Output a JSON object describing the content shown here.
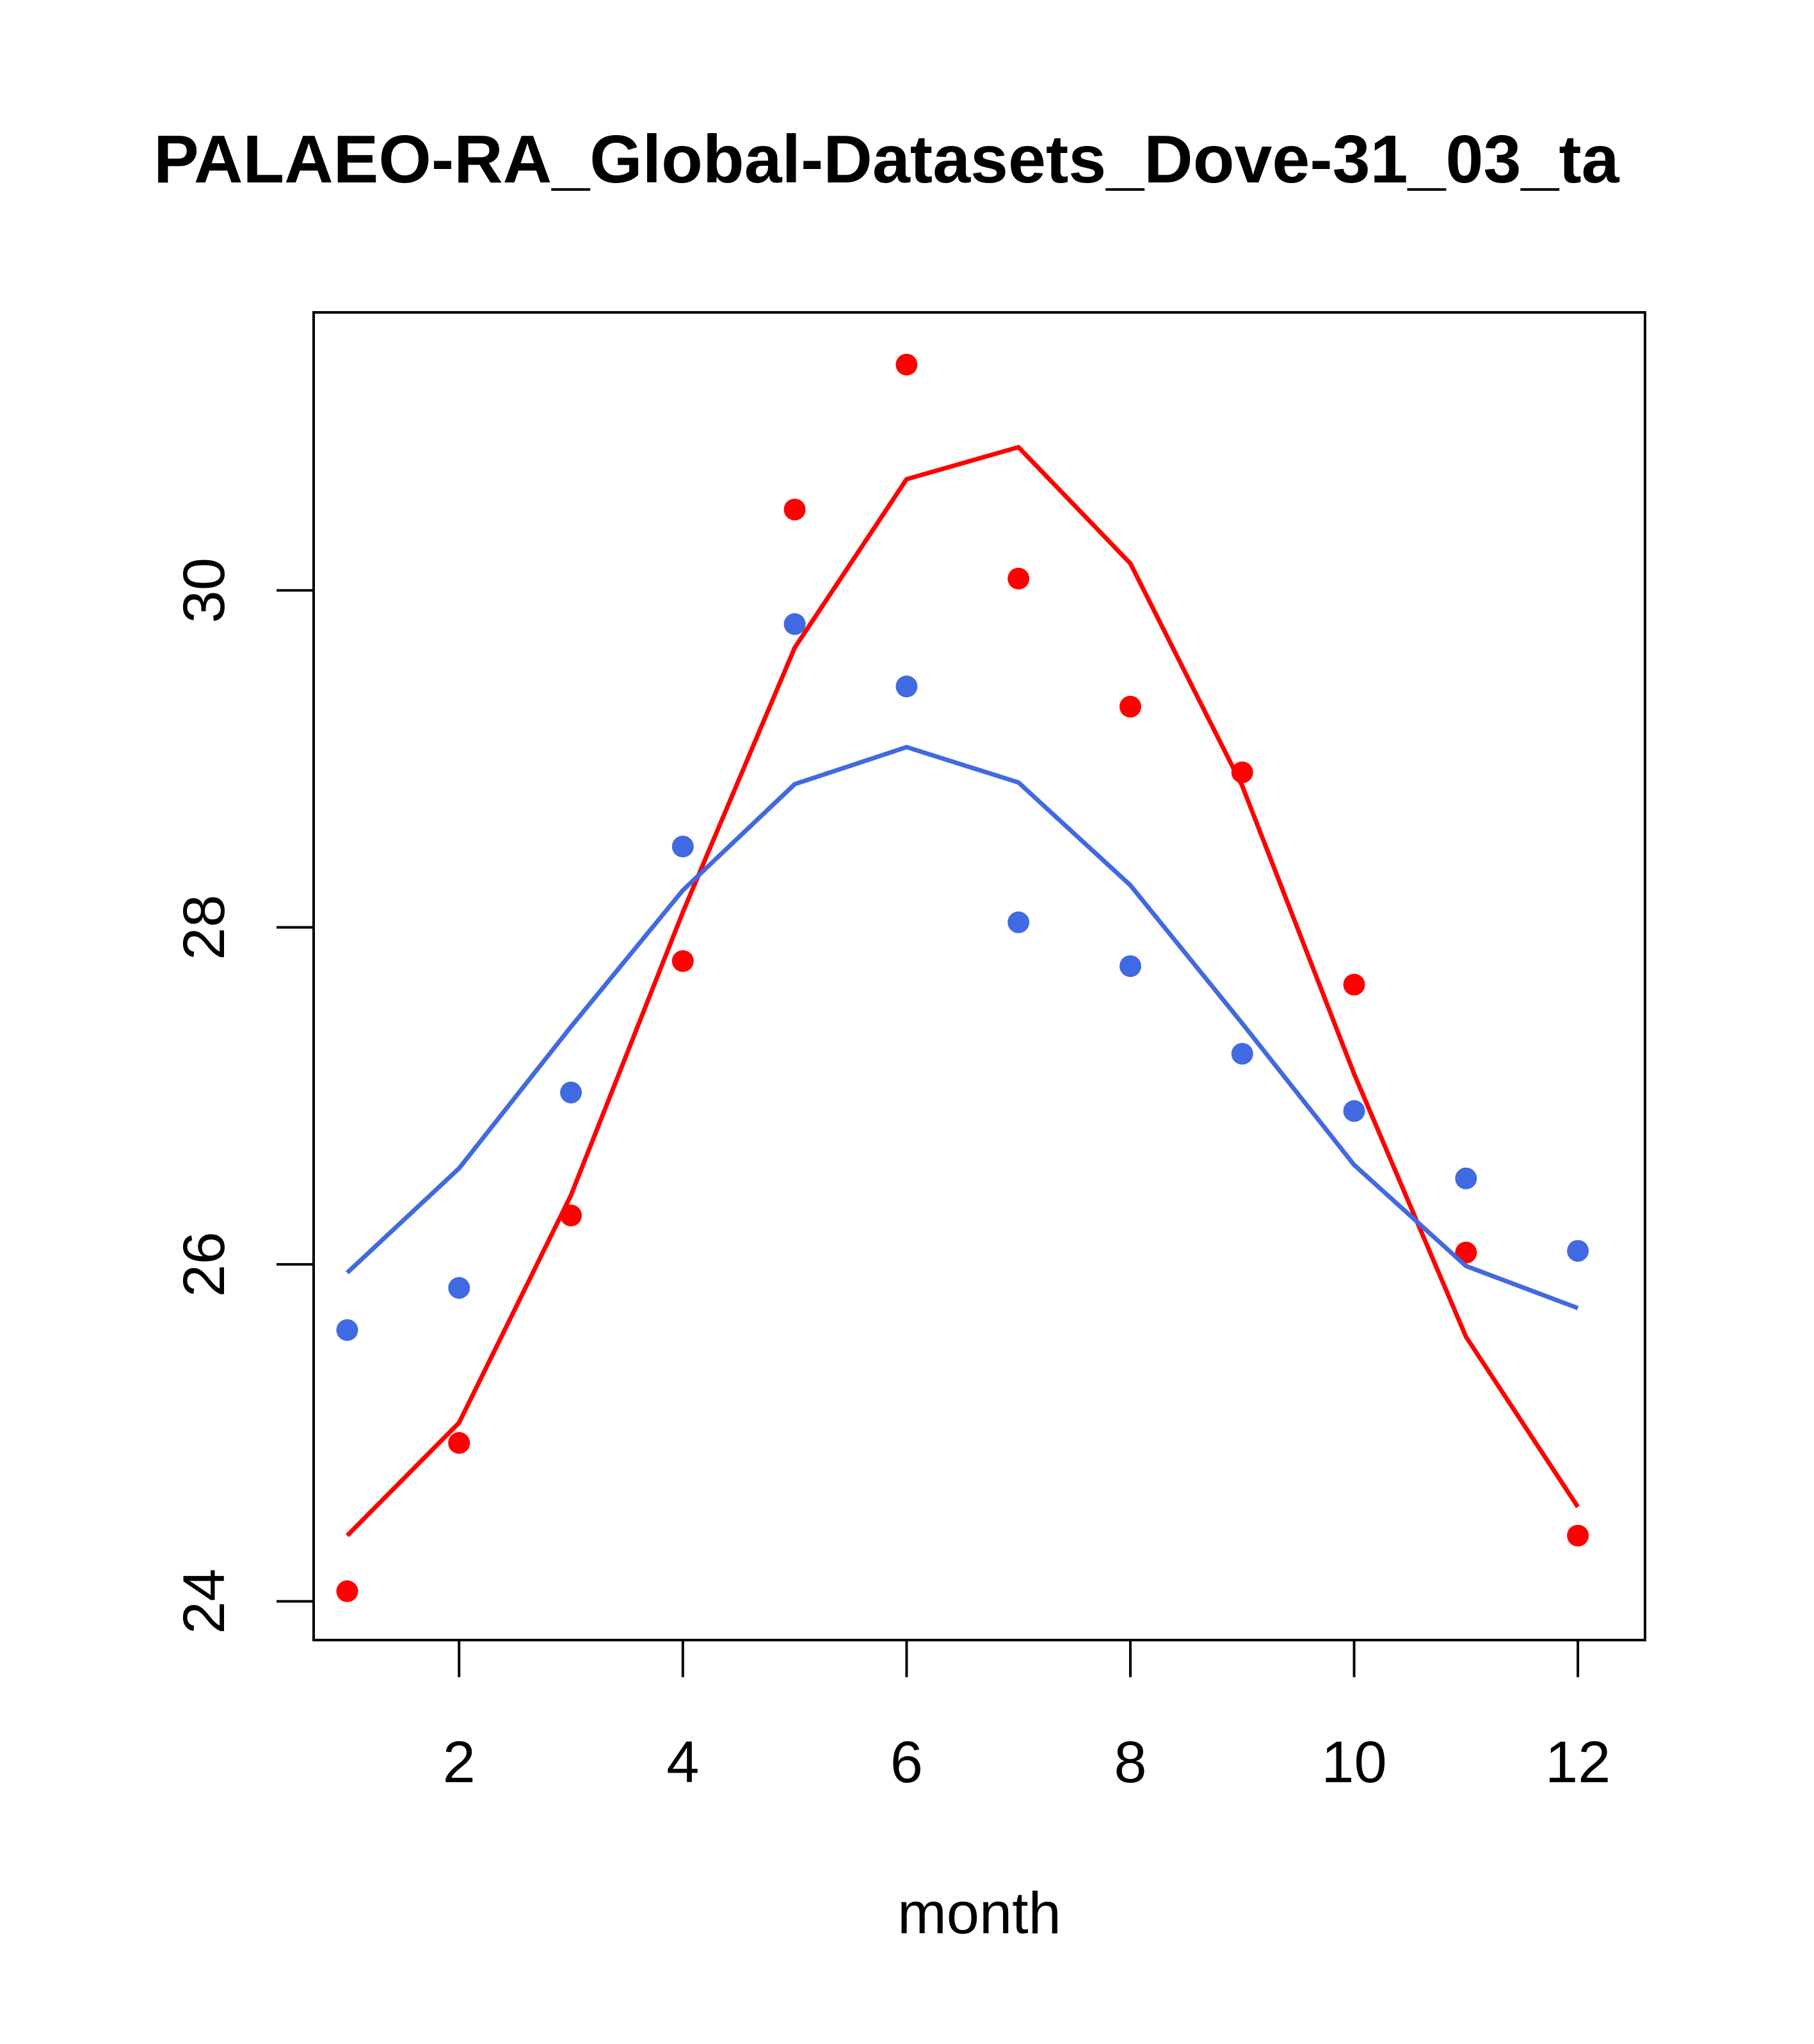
{
  "chart_data": {
    "type": "line",
    "title": "PALAEO-RA_Global-Datasets_Dove-31_03_ta",
    "xlabel": "month",
    "ylabel": "",
    "xlim": [
      0.7,
      12.6
    ],
    "ylim": [
      23.77,
      31.65
    ],
    "x_ticks": [
      2,
      4,
      6,
      8,
      10,
      12
    ],
    "y_ticks": [
      24,
      26,
      28,
      30
    ],
    "grid": false,
    "legend": "none",
    "series": [
      {
        "name": "red points",
        "kind": "points",
        "color": "#FF0000",
        "x": [
          1,
          2,
          3,
          4,
          5,
          6,
          7,
          8,
          9,
          10,
          11,
          12
        ],
        "values": [
          24.06,
          24.94,
          26.29,
          27.8,
          30.48,
          31.34,
          30.07,
          29.31,
          28.92,
          27.66,
          26.07,
          24.39
        ]
      },
      {
        "name": "red line",
        "kind": "line",
        "color": "#FF0000",
        "x": [
          1,
          2,
          3,
          4,
          5,
          6,
          7,
          8,
          9,
          10,
          11,
          12
        ],
        "values": [
          24.39,
          25.06,
          26.41,
          28.09,
          29.66,
          30.66,
          30.85,
          30.16,
          28.84,
          27.13,
          25.57,
          24.56
        ]
      },
      {
        "name": "blue points",
        "kind": "points",
        "color": "#4169E1",
        "x": [
          1,
          2,
          3,
          4,
          5,
          6,
          7,
          8,
          9,
          10,
          11,
          12
        ],
        "values": [
          25.61,
          25.86,
          27.02,
          28.48,
          29.8,
          29.43,
          28.03,
          27.77,
          27.25,
          26.91,
          26.51,
          26.08
        ]
      },
      {
        "name": "blue line",
        "kind": "line",
        "color": "#4169E1",
        "x": [
          1,
          2,
          3,
          4,
          5,
          6,
          7,
          8,
          9,
          10,
          11,
          12
        ],
        "values": [
          25.95,
          26.57,
          27.41,
          28.22,
          28.85,
          29.07,
          28.86,
          28.25,
          27.43,
          26.59,
          25.99,
          25.74
        ]
      }
    ]
  }
}
